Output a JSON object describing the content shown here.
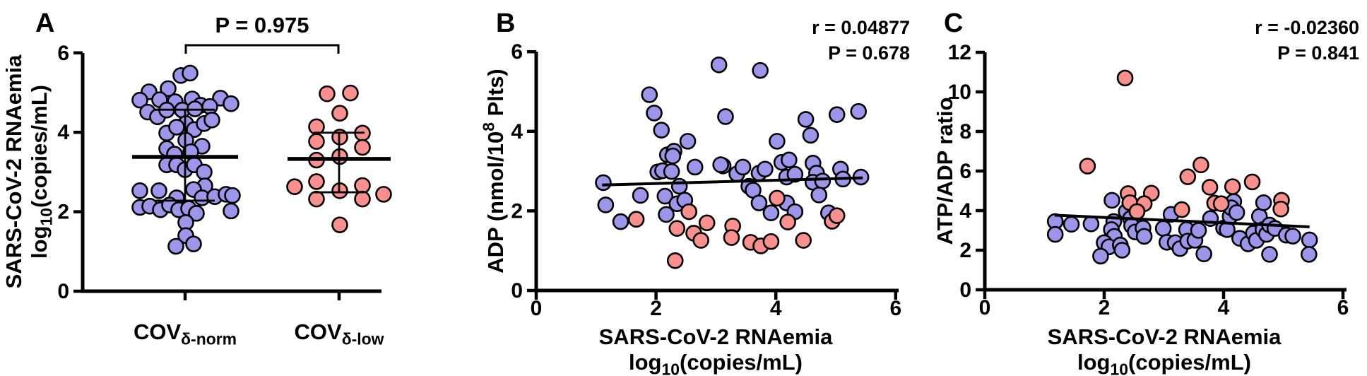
{
  "figure": {
    "background": "#ffffff",
    "colors": {
      "cov_norm": "#9B96E9",
      "cov_low": "#F9908E",
      "axis": "#000000"
    }
  },
  "chart_data": [
    {
      "type": "scatter",
      "subtype": "grouped-dot-plot-with-median-iqr",
      "panel_letter": "A",
      "ylabel_line1": "SARS-CoV-2 RNAemia",
      "ylabel_line2_parts": [
        [
          "log"
        ],
        [
          "10",
          "sub"
        ],
        [
          "(copies/mL)"
        ]
      ],
      "ylim": [
        0,
        6
      ],
      "yticks": [
        0,
        2,
        4,
        6
      ],
      "comparison_p_label": "P = 0.975",
      "groups": [
        {
          "label_main": "COV",
          "label_sub": "δ-norm",
          "color_key": "cov_norm",
          "median": 3.38,
          "q1": 2.28,
          "q3": 4.57,
          "points": [
            [
              -6,
              5.43
            ],
            [
              7,
              5.49
            ],
            [
              -51,
              5.02
            ],
            [
              -24,
              5.1
            ],
            [
              -64,
              4.81
            ],
            [
              -36,
              4.82
            ],
            [
              -14,
              4.77
            ],
            [
              10,
              4.84
            ],
            [
              22,
              4.68
            ],
            [
              50,
              4.86
            ],
            [
              65,
              4.72
            ],
            [
              -53,
              4.51
            ],
            [
              -39,
              4.39
            ],
            [
              -26,
              4.56
            ],
            [
              -4,
              4.56
            ],
            [
              14,
              4.59
            ],
            [
              35,
              4.65
            ],
            [
              1,
              4.22
            ],
            [
              13,
              4.07
            ],
            [
              27,
              4.22
            ],
            [
              38,
              4.31
            ],
            [
              -26,
              3.98
            ],
            [
              -12,
              4.13
            ],
            [
              1,
              3.8
            ],
            [
              -26,
              3.59
            ],
            [
              24,
              3.65
            ],
            [
              -15,
              3.45
            ],
            [
              8,
              3.51
            ],
            [
              -26,
              3.18
            ],
            [
              -12,
              3.18
            ],
            [
              0,
              3.06
            ],
            [
              13,
              3.18
            ],
            [
              27,
              3.0
            ],
            [
              28,
              2.65
            ],
            [
              -64,
              2.53
            ],
            [
              -37,
              2.53
            ],
            [
              12,
              2.56
            ],
            [
              -12,
              2.35
            ],
            [
              24,
              2.35
            ],
            [
              42,
              2.38
            ],
            [
              58,
              2.44
            ],
            [
              67,
              2.41
            ],
            [
              -64,
              2.11
            ],
            [
              -50,
              2.14
            ],
            [
              -35,
              2.05
            ],
            [
              -22,
              2.17
            ],
            [
              -9,
              2.05
            ],
            [
              5,
              2.08
            ],
            [
              16,
              1.96
            ],
            [
              65,
              2.02
            ],
            [
              1,
              1.73
            ],
            [
              1,
              1.4
            ],
            [
              -13,
              1.13
            ],
            [
              12,
              1.19
            ]
          ]
        },
        {
          "label_main": "COV",
          "label_sub": "δ-low",
          "color_key": "cov_low",
          "median": 3.33,
          "q1": 2.49,
          "q3": 3.99,
          "points": [
            [
              -17,
              4.97
            ],
            [
              16,
              4.99
            ],
            [
              1,
              4.48
            ],
            [
              -32,
              4.14
            ],
            [
              1,
              3.88
            ],
            [
              -32,
              3.77
            ],
            [
              33,
              3.98
            ],
            [
              33,
              3.62
            ],
            [
              -32,
              3.3
            ],
            [
              1,
              3.39
            ],
            [
              -63,
              2.63
            ],
            [
              -32,
              2.76
            ],
            [
              1,
              2.53
            ],
            [
              33,
              2.66
            ],
            [
              33,
              2.32
            ],
            [
              -32,
              2.32
            ],
            [
              63,
              2.44
            ],
            [
              1,
              1.67
            ]
          ]
        }
      ]
    },
    {
      "type": "scatter",
      "panel_letter": "B",
      "stats_r": "r = 0.04877",
      "stats_p": "P = 0.678",
      "xlabel_line1": "SARS-CoV-2 RNAemia",
      "xlabel_line2_parts": [
        [
          "log"
        ],
        [
          "10",
          "sub"
        ],
        [
          "(copies/mL)"
        ]
      ],
      "ylabel_parts": [
        [
          "ADP (nmol/10"
        ],
        [
          "8",
          "sup"
        ],
        [
          " Plts)"
        ]
      ],
      "xlim": [
        0,
        6
      ],
      "ylim": [
        0,
        6
      ],
      "xticks": [
        0,
        2,
        4,
        6
      ],
      "yticks": [
        0,
        2,
        4,
        6
      ],
      "trend": [
        [
          1.1,
          2.65
        ],
        [
          5.45,
          2.83
        ]
      ],
      "series": [
        {
          "name": "COV δ-norm",
          "color_key": "cov_norm",
          "points": [
            [
              1.12,
              2.71
            ],
            [
              1.16,
              2.15
            ],
            [
              1.41,
              1.73
            ],
            [
              1.74,
              2.39
            ],
            [
              1.89,
              4.92
            ],
            [
              1.97,
              4.46
            ],
            [
              2.09,
              4.03
            ],
            [
              2.03,
              2.98
            ],
            [
              2.11,
              3.01
            ],
            [
              2.26,
              2.99
            ],
            [
              2.19,
              3.41
            ],
            [
              2.3,
              3.5
            ],
            [
              2.28,
              3.38
            ],
            [
              2.15,
              2.37
            ],
            [
              2.17,
              1.91
            ],
            [
              2.39,
              2.62
            ],
            [
              2.35,
              2.18
            ],
            [
              2.48,
              2.27
            ],
            [
              2.53,
              3.75
            ],
            [
              2.65,
              3.1
            ],
            [
              3.05,
              5.67
            ],
            [
              3.74,
              5.53
            ],
            [
              3.12,
              3.13
            ],
            [
              3.16,
              4.37
            ],
            [
              3.08,
              3.16
            ],
            [
              3.35,
              2.93
            ],
            [
              3.45,
              3.1
            ],
            [
              3.55,
              2.62
            ],
            [
              3.62,
              2.52
            ],
            [
              3.72,
              2.95
            ],
            [
              3.82,
              3.05
            ],
            [
              3.72,
              2.2
            ],
            [
              3.92,
              1.95
            ],
            [
              4.02,
              3.75
            ],
            [
              4.1,
              3.22
            ],
            [
              4.22,
              3.28
            ],
            [
              4.18,
              2.85
            ],
            [
              4.32,
              2.92
            ],
            [
              4.18,
              2.2
            ],
            [
              4.32,
              1.98
            ],
            [
              4.5,
              4.3
            ],
            [
              4.58,
              3.9
            ],
            [
              4.62,
              3.2
            ],
            [
              4.68,
              2.95
            ],
            [
              4.62,
              2.72
            ],
            [
              4.78,
              2.75
            ],
            [
              4.72,
              2.4
            ],
            [
              4.88,
              1.95
            ],
            [
              5.02,
              4.42
            ],
            [
              5.08,
              3.05
            ],
            [
              5.12,
              2.8
            ],
            [
              5.38,
              4.5
            ],
            [
              5.42,
              2.85
            ]
          ]
        },
        {
          "name": "COV δ-low",
          "color_key": "cov_low",
          "points": [
            [
              1.67,
              1.79
            ],
            [
              2.35,
              1.56
            ],
            [
              2.32,
              0.75
            ],
            [
              2.55,
              1.98
            ],
            [
              2.63,
              1.44
            ],
            [
              2.75,
              1.26
            ],
            [
              2.85,
              1.7
            ],
            [
              3.28,
              1.62
            ],
            [
              3.26,
              1.33
            ],
            [
              3.58,
              1.21
            ],
            [
              3.75,
              1.12
            ],
            [
              3.92,
              1.23
            ],
            [
              4.02,
              2.32
            ],
            [
              4.2,
              1.72
            ],
            [
              4.46,
              1.26
            ],
            [
              4.94,
              1.74
            ],
            [
              5.02,
              1.88
            ]
          ]
        }
      ]
    },
    {
      "type": "scatter",
      "panel_letter": "C",
      "stats_r": "r = -0.02360",
      "stats_p": "P = 0.841",
      "xlabel_line1": "SARS-CoV-2 RNAemia",
      "xlabel_line2_parts": [
        [
          "log"
        ],
        [
          "10",
          "sub"
        ],
        [
          "(copies/mL)"
        ]
      ],
      "ylabel_parts": [
        [
          "ATP/ADP ratio"
        ]
      ],
      "xlim": [
        0,
        6
      ],
      "ylim": [
        0,
        12
      ],
      "xticks": [
        0,
        2,
        4,
        6
      ],
      "yticks": [
        0,
        2,
        4,
        6,
        8,
        10,
        12
      ],
      "trend": [
        [
          1.17,
          3.77
        ],
        [
          5.44,
          3.18
        ]
      ],
      "series": [
        {
          "name": "COV δ-norm",
          "color_key": "cov_norm",
          "points": [
            [
              1.18,
              3.45
            ],
            [
              1.18,
              2.8
            ],
            [
              1.45,
              3.31
            ],
            [
              1.78,
              3.33
            ],
            [
              2.13,
              4.52
            ],
            [
              2.16,
              3.45
            ],
            [
              2.12,
              3.04
            ],
            [
              2.17,
              2.7
            ],
            [
              2.0,
              2.38
            ],
            [
              2.08,
              2.17
            ],
            [
              1.94,
              1.7
            ],
            [
              2.27,
              2.26
            ],
            [
              2.3,
              2.0
            ],
            [
              2.37,
              3.95
            ],
            [
              2.44,
              3.6
            ],
            [
              2.46,
              3.24
            ],
            [
              2.52,
              2.92
            ],
            [
              2.65,
              3.12
            ],
            [
              2.67,
              2.7
            ],
            [
              2.99,
              3.1
            ],
            [
              3.05,
              2.4
            ],
            [
              3.19,
              2.38
            ],
            [
              3.12,
              3.81
            ],
            [
              3.27,
              2.08
            ],
            [
              3.38,
              3.04
            ],
            [
              3.4,
              2.46
            ],
            [
              3.52,
              2.5
            ],
            [
              3.58,
              3.0
            ],
            [
              3.67,
              1.81
            ],
            [
              3.78,
              3.6
            ],
            [
              4.0,
              3.12
            ],
            [
              4.06,
              3.04
            ],
            [
              4.11,
              3.71
            ],
            [
              4.17,
              4.46
            ],
            [
              4.13,
              4.14
            ],
            [
              4.22,
              3.9
            ],
            [
              4.27,
              2.6
            ],
            [
              4.41,
              2.32
            ],
            [
              4.5,
              2.86
            ],
            [
              4.55,
              2.5
            ],
            [
              4.6,
              3.71
            ],
            [
              4.67,
              4.4
            ],
            [
              4.66,
              3.04
            ],
            [
              4.72,
              2.8
            ],
            [
              4.77,
              3.27
            ],
            [
              4.77,
              1.79
            ],
            [
              4.86,
              3.1
            ],
            [
              5.05,
              2.76
            ],
            [
              5.16,
              2.71
            ],
            [
              5.44,
              2.52
            ],
            [
              5.43,
              1.79
            ]
          ]
        },
        {
          "name": "COV δ-low",
          "color_key": "cov_low",
          "points": [
            [
              2.35,
              10.7
            ],
            [
              1.72,
              6.25
            ],
            [
              3.62,
              6.31
            ],
            [
              3.4,
              5.71
            ],
            [
              2.4,
              4.86
            ],
            [
              2.79,
              4.88
            ],
            [
              2.43,
              4.4
            ],
            [
              2.67,
              4.35
            ],
            [
              2.55,
              3.95
            ],
            [
              3.3,
              4.05
            ],
            [
              3.77,
              5.18
            ],
            [
              4.15,
              5.21
            ],
            [
              4.48,
              5.45
            ],
            [
              3.85,
              4.38
            ],
            [
              3.96,
              4.35
            ],
            [
              4.97,
              4.52
            ],
            [
              4.96,
              4.08
            ]
          ]
        }
      ]
    }
  ]
}
